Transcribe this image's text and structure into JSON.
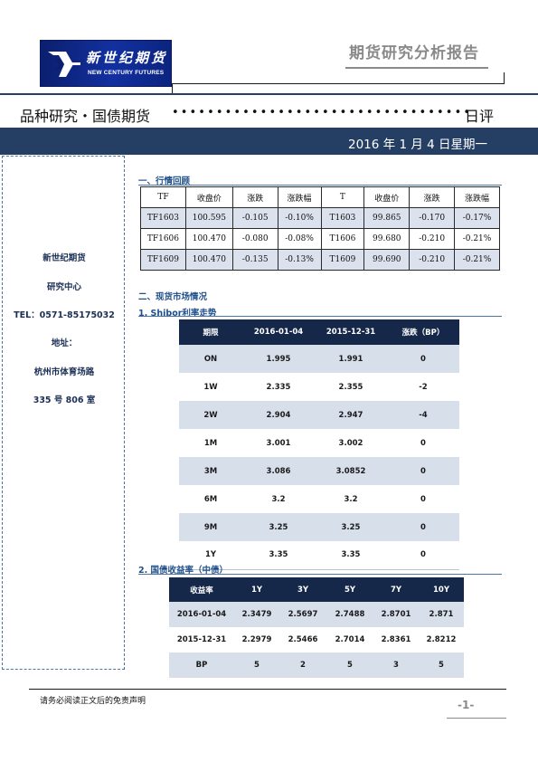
{
  "header": {
    "logo_cn": "新世纪期货",
    "logo_en": "NEW CENTURY FUTURES",
    "report_title": "期货研究分析报告"
  },
  "section": {
    "title": "品种研究・国债期货",
    "dots": "••••••••••••••••••••••••••••••••••",
    "suffix": "日评",
    "date": "2016 年 1 月 4 日星期一"
  },
  "sidebar": {
    "company": "新世纪期货",
    "dept": "研究中心",
    "tel": "TEL：0571-85175032",
    "addr_label": "地址：",
    "addr_line1": "杭州市体育场路",
    "addr_line2": "335 号 806 室"
  },
  "market_review": {
    "heading": "一、行情回顾",
    "columns": [
      "TF",
      "收盘价",
      "涨跌",
      "涨跌幅",
      "T",
      "收盘价",
      "涨跌",
      "涨跌幅"
    ],
    "rows": [
      [
        "TF1603",
        "100.595",
        "-0.105",
        "-0.10%",
        "T1603",
        "99.865",
        "-0.170",
        "-0.17%"
      ],
      [
        "TF1606",
        "100.470",
        "-0.080",
        "-0.08%",
        "T1606",
        "99.680",
        "-0.210",
        "-0.21%"
      ],
      [
        "TF1609",
        "100.470",
        "-0.135",
        "-0.13%",
        "T1609",
        "99.690",
        "-0.210",
        "-0.21%"
      ]
    ]
  },
  "spot_market": {
    "heading": "二、现货市场情况",
    "shibor_heading": "1.  Shibor利率走势",
    "shibor_columns": [
      "期限",
      "2016-01-04",
      "2015-12-31",
      "涨跌（BP）"
    ],
    "shibor_rows": [
      [
        "ON",
        "1.995",
        "1.991",
        "0"
      ],
      [
        "1W",
        "2.335",
        "2.355",
        "-2"
      ],
      [
        "2W",
        "2.904",
        "2.947",
        "-4"
      ],
      [
        "1M",
        "3.001",
        "3.002",
        "0"
      ],
      [
        "3M",
        "3.086",
        "3.0852",
        "0"
      ],
      [
        "6M",
        "3.2",
        "3.2",
        "0"
      ],
      [
        "9M",
        "3.25",
        "3.25",
        "0"
      ],
      [
        "1Y",
        "3.35",
        "3.35",
        "0"
      ]
    ],
    "yield_heading": "2.   国债收益率（中债）",
    "yield_columns": [
      "收益率",
      "1Y",
      "3Y",
      "5Y",
      "7Y",
      "10Y"
    ],
    "yield_rows": [
      [
        "2016-01-04",
        "2.3479",
        "2.5697",
        "2.7488",
        "2.8701",
        "2.871"
      ],
      [
        "2015-12-31",
        "2.2979",
        "2.5466",
        "2.7014",
        "2.8361",
        "2.8212"
      ],
      [
        "BP",
        "5",
        "2",
        "5",
        "3",
        "5"
      ]
    ]
  },
  "footer": {
    "disclaimer": "请务必阅读正文后的免责声明",
    "page": "-1-"
  }
}
